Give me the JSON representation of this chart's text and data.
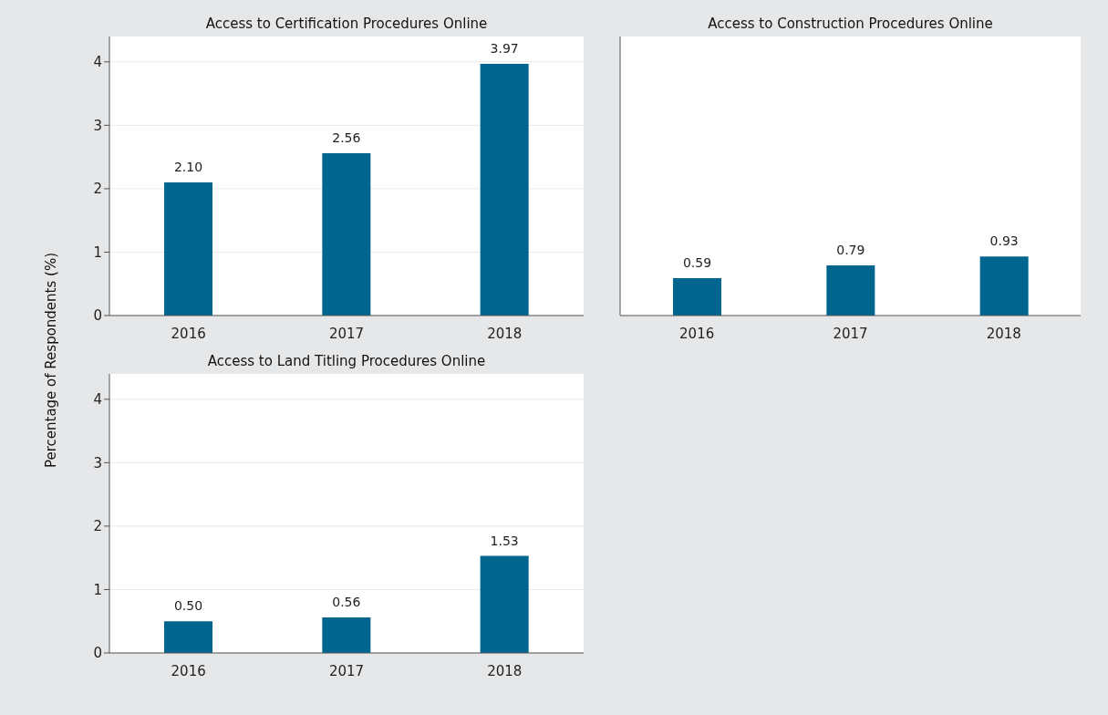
{
  "chart_data": [
    {
      "type": "bar",
      "title": "Access to Certification Procedures Online",
      "ylabel": "Percentage of Respondents (%)",
      "categories": [
        "2016",
        "2017",
        "2018"
      ],
      "values": [
        2.1,
        2.56,
        3.97
      ],
      "value_labels": [
        "2.10",
        "2.56",
        "3.97"
      ],
      "color": "#006690",
      "ylim": [
        0,
        4.4
      ],
      "yticks": [
        0,
        1,
        2,
        3,
        4
      ],
      "grid": "y",
      "legend": false
    },
    {
      "type": "bar",
      "title": "Access to Construction Procedures Online",
      "categories": [
        "2016",
        "2017",
        "2018"
      ],
      "values": [
        0.59,
        0.79,
        0.93
      ],
      "value_labels": [
        "0.59",
        "0.79",
        "0.93"
      ],
      "color": "#006690",
      "ylim": [
        0,
        4.4
      ],
      "yticks": [
        0,
        1,
        2,
        3,
        4
      ],
      "grid": "y",
      "legend": false,
      "tick_labels": "x"
    },
    {
      "type": "bar",
      "title": "Access to Land Titling Procedures Online",
      "categories": [
        "2016",
        "2017",
        "2018"
      ],
      "values": [
        0.5,
        0.56,
        1.53
      ],
      "value_labels": [
        "0.50",
        "0.56",
        "1.53"
      ],
      "color": "#006690",
      "ylim": [
        0,
        4.4
      ],
      "yticks": [
        0,
        1,
        2,
        3,
        4
      ],
      "grid": "y",
      "legend": false
    }
  ]
}
